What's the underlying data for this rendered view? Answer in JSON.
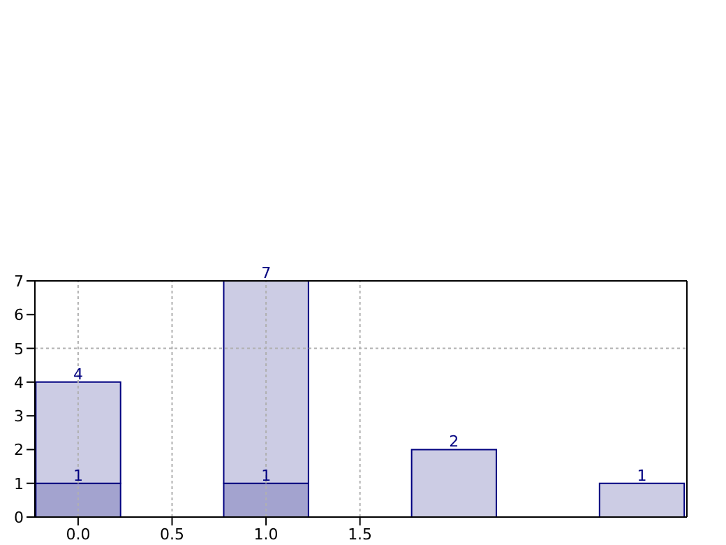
{
  "chart_data": {
    "type": "bar",
    "x": [
      0,
      1,
      2,
      3
    ],
    "stacked": true,
    "series": [
      {
        "color": "#a3a3cf",
        "values": [
          1,
          1,
          null,
          null
        ],
        "value_labels": [
          "1",
          "1",
          null,
          null
        ]
      },
      {
        "color": "#cccce4",
        "values": [
          3,
          6,
          2,
          1
        ]
      }
    ],
    "totals": [
      "4",
      "7",
      "2",
      "1"
    ],
    "xlim": [
      -0.23,
      3.24
    ],
    "xticks": [
      {
        "value": 0,
        "label": "0.0"
      },
      0.5,
      {
        "value": 1,
        "label": "1.0"
      },
      1.5
    ],
    "ylim": [
      0,
      7
    ],
    "yticks": [
      0,
      1,
      2,
      3,
      4,
      5,
      6,
      7
    ],
    "grid": "x",
    "ref_lines": [
      {
        "axis": "y",
        "value": 5,
        "line_style": "dotted",
        "color": "#b0b0b0"
      }
    ]
  }
}
